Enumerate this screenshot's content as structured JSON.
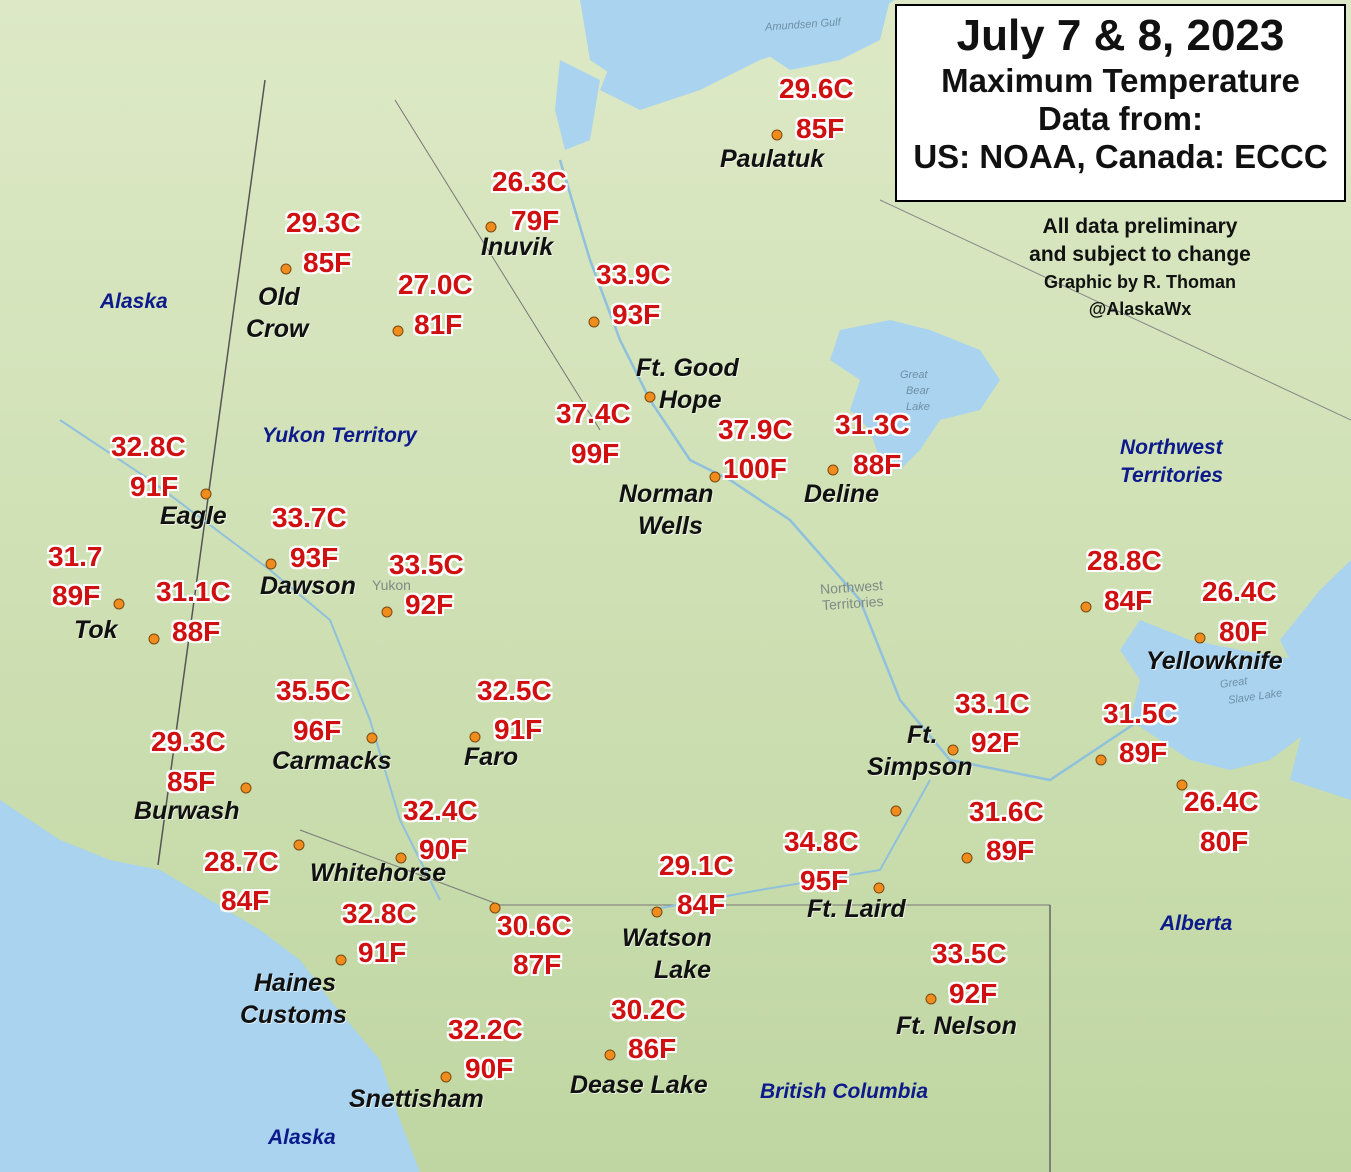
{
  "title": {
    "date": "July 7 & 8, 2023",
    "line2": "Maximum Temperature",
    "line3": "Data from:",
    "line4": "US: NOAA, Canada: ECCC"
  },
  "credits": {
    "line1": "All data preliminary",
    "line2": "and subject to change",
    "line3": "Graphic by R. Thoman",
    "line4": "@AlaskaWx"
  },
  "regions": {
    "alaska_north": "Alaska",
    "alaska_south": "Alaska",
    "yukon": "Yukon Territory",
    "nwt_line1": "Northwest",
    "nwt_line2": "Territories",
    "alberta": "Alberta",
    "bc": "British Columbia"
  },
  "basemap_labels": {
    "amundsen_gulf": "Amundsen Gulf",
    "great_bear_1": "Great",
    "great_bear_2": "Bear",
    "great_bear_3": "Lake",
    "great_slave_1": "Great",
    "great_slave_2": "Slave Lake",
    "yukon_faint": "Yukon",
    "nwt_faint_1": "Northwest",
    "nwt_faint_2": "Territories"
  },
  "stations": {
    "paulatuk": {
      "c": "29.6C",
      "f": "85F",
      "name": "Paulatuk"
    },
    "inuvik": {
      "c": "26.3C",
      "f": "79F",
      "name": "Inuvik"
    },
    "old_crow": {
      "c": "29.3C",
      "f": "85F",
      "name1": "Old",
      "name2": "Crow"
    },
    "unnamed_27": {
      "c": "27.0C",
      "f": "81F"
    },
    "unnamed_339": {
      "c": "33.9C",
      "f": "93F"
    },
    "ft_good_hope": {
      "c": "37.4C",
      "f": "99F",
      "name1": "Ft. Good",
      "name2": "Hope"
    },
    "norman_wells": {
      "c": "37.9C",
      "f": "100F",
      "name1": "Norman",
      "name2": "Wells"
    },
    "deline": {
      "c": "31.3C",
      "f": "88F",
      "name": "Deline"
    },
    "eagle": {
      "c": "32.8C",
      "f": "91F",
      "name": "Eagle"
    },
    "dawson": {
      "c": "33.7C",
      "f": "93F",
      "name": "Dawson"
    },
    "unnamed_335": {
      "c": "33.5C",
      "f": "92F"
    },
    "tok": {
      "c": "31.7",
      "f": "89F",
      "name": "Tok"
    },
    "unnamed_311": {
      "c": "31.1C",
      "f": "88F"
    },
    "unnamed_288": {
      "c": "28.8C",
      "f": "84F"
    },
    "yellowknife": {
      "c": "26.4C",
      "f": "80F",
      "name": "Yellowknife"
    },
    "carmacks": {
      "c": "35.5C",
      "f": "96F",
      "name": "Carmacks"
    },
    "faro": {
      "c": "32.5C",
      "f": "91F",
      "name": "Faro"
    },
    "burwash": {
      "c": "29.3C",
      "f": "85F",
      "name": "Burwash"
    },
    "ft_simpson": {
      "c": "33.1C",
      "f": "92F",
      "name1": "Ft.",
      "name2": "Simpson"
    },
    "unnamed_315": {
      "c": "31.5C",
      "f": "89F"
    },
    "unnamed_264b": {
      "c": "26.4C",
      "f": "80F"
    },
    "whitehorse": {
      "c": "32.4C",
      "f": "90F",
      "name": "Whitehorse"
    },
    "unnamed_316": {
      "c": "31.6C",
      "f": "89F"
    },
    "unnamed_287": {
      "c": "28.7C",
      "f": "84F"
    },
    "ft_laird": {
      "c": "34.8C",
      "f": "95F",
      "name": "Ft. Laird"
    },
    "watson_lake": {
      "c": "29.1C",
      "f": "84F",
      "name1": "Watson",
      "name2": "Lake"
    },
    "unnamed_306": {
      "c": "30.6C",
      "f": "87F"
    },
    "haines_customs": {
      "c": "32.8C",
      "f": "91F",
      "name1": "Haines",
      "name2": "Customs"
    },
    "ft_nelson": {
      "c": "33.5C",
      "f": "92F",
      "name": "Ft. Nelson"
    },
    "dease_lake": {
      "c": "30.2C",
      "f": "86F",
      "name": "Dease Lake"
    },
    "snettisham": {
      "c": "32.2C",
      "f": "90F",
      "name": "Snettisham"
    }
  },
  "colors": {
    "ocean": "#a9d3ee",
    "land_light": "#d5e6bd",
    "land_dark": "#b7cf9b",
    "temperature": "#d01010",
    "region_label": "#0c1a8c",
    "station_dot": "#f08c1e"
  }
}
